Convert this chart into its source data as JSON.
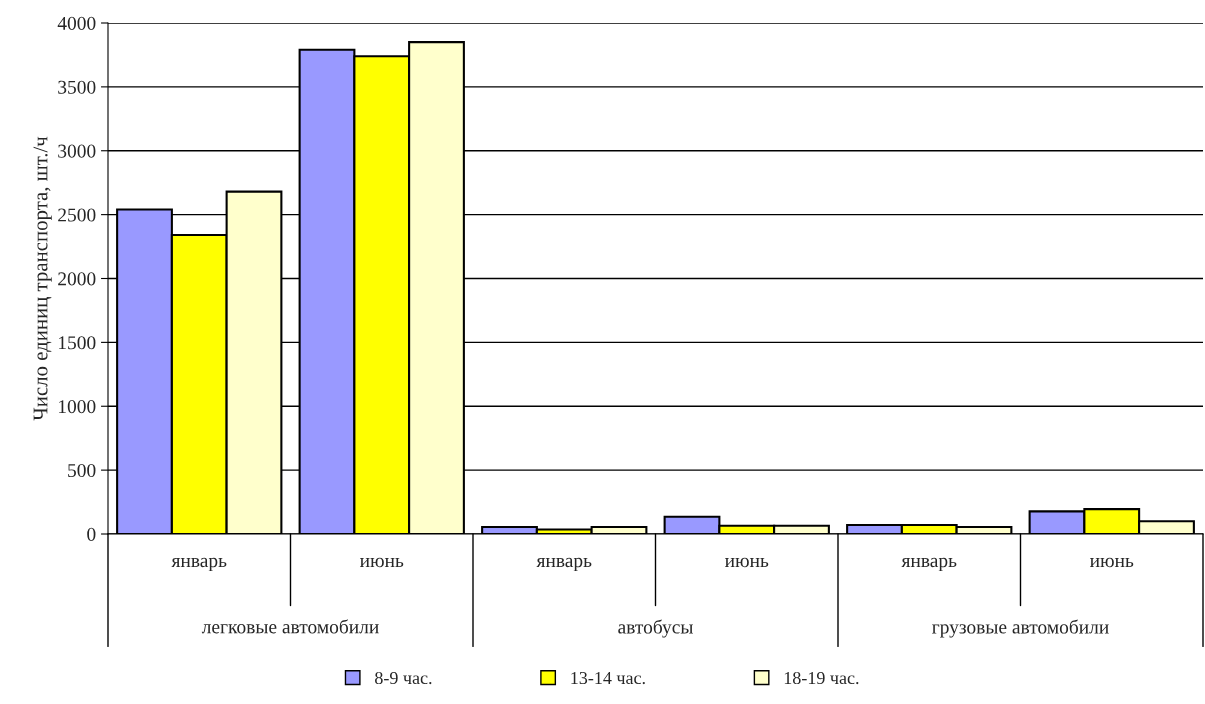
{
  "chart_data": {
    "type": "bar",
    "ylabel": "Число единиц транспорта, шт./ч",
    "categories": [
      "январь",
      "июнь",
      "январь",
      "июнь",
      "январь",
      "июнь"
    ],
    "series": [
      {
        "name": "8-9 час.",
        "color": "#9999ff",
        "values": [
          2540,
          3790,
          55,
          135,
          70,
          177
        ]
      },
      {
        "name": "13-14 час.",
        "color": "#ffff00",
        "values": [
          2340,
          3740,
          35,
          65,
          70,
          195
        ]
      },
      {
        "name": "18-19 час.",
        "color": "#ffffcc",
        "values": [
          2680,
          3850,
          55,
          65,
          55,
          100
        ]
      }
    ],
    "annotations": [
      "легковые автомобили",
      "автобусы",
      "грузовые автомобили"
    ],
    "ylim": [
      0,
      4000
    ],
    "yticks": [
      0,
      500,
      1000,
      1500,
      2000,
      2500,
      3000,
      3500,
      4000
    ],
    "grid": "y",
    "legend": "bottom"
  }
}
